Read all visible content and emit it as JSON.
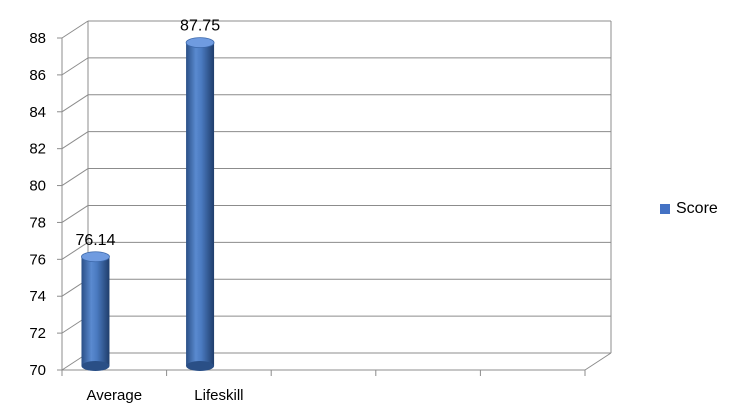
{
  "chart_data": {
    "type": "bar",
    "categories": [
      "Average",
      "Lifeskill",
      "",
      "",
      ""
    ],
    "series": [
      {
        "name": "Score",
        "values": [
          76.14,
          87.75,
          null,
          null,
          null
        ],
        "color": "#4472C4"
      }
    ],
    "data_labels": [
      "76.14",
      "87.75"
    ],
    "yticks": [
      "70",
      "72",
      "74",
      "76",
      "78",
      "80",
      "82",
      "84",
      "86",
      "88"
    ],
    "ylim": [
      70,
      88
    ],
    "title": "",
    "xlabel": "",
    "ylabel": "",
    "grid": true,
    "legend": "right",
    "style": "3d-cylinder"
  }
}
